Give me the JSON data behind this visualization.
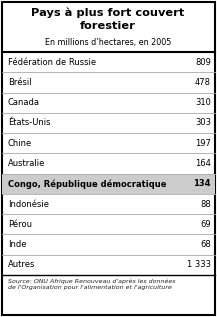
{
  "title": "Pays à plus fort couvert\nforestier",
  "subtitle": "En millions d’hectares, en 2005",
  "rows": [
    {
      "country": "Fédération de Russie",
      "value": "809",
      "highlight": false
    },
    {
      "country": "Brésil",
      "value": "478",
      "highlight": false
    },
    {
      "country": "Canada",
      "value": "310",
      "highlight": false
    },
    {
      "country": "États-Unis",
      "value": "303",
      "highlight": false
    },
    {
      "country": "Chine",
      "value": "197",
      "highlight": false
    },
    {
      "country": "Australie",
      "value": "164",
      "highlight": false
    },
    {
      "country": "Congo, République démocratique",
      "value": "134",
      "highlight": true
    },
    {
      "country": "Indonésie",
      "value": "88",
      "highlight": false
    },
    {
      "country": "Pérou",
      "value": "69",
      "highlight": false
    },
    {
      "country": "Inde",
      "value": "68",
      "highlight": false
    },
    {
      "country": "Autres",
      "value": "1 333",
      "highlight": false
    }
  ],
  "source": "Source: ONU Afrique Renouveau d'après les données\nde l'Organisation pour l'alimentation et l'agriculture",
  "bg_color": "#ffffff",
  "border_color": "#000000",
  "highlight_bg": "#cccccc",
  "row_line_color": "#aaaaaa",
  "title_color": "#000000",
  "title_fontsize": 8.2,
  "subtitle_fontsize": 5.8,
  "row_fontsize": 6.0,
  "source_fontsize": 4.5
}
